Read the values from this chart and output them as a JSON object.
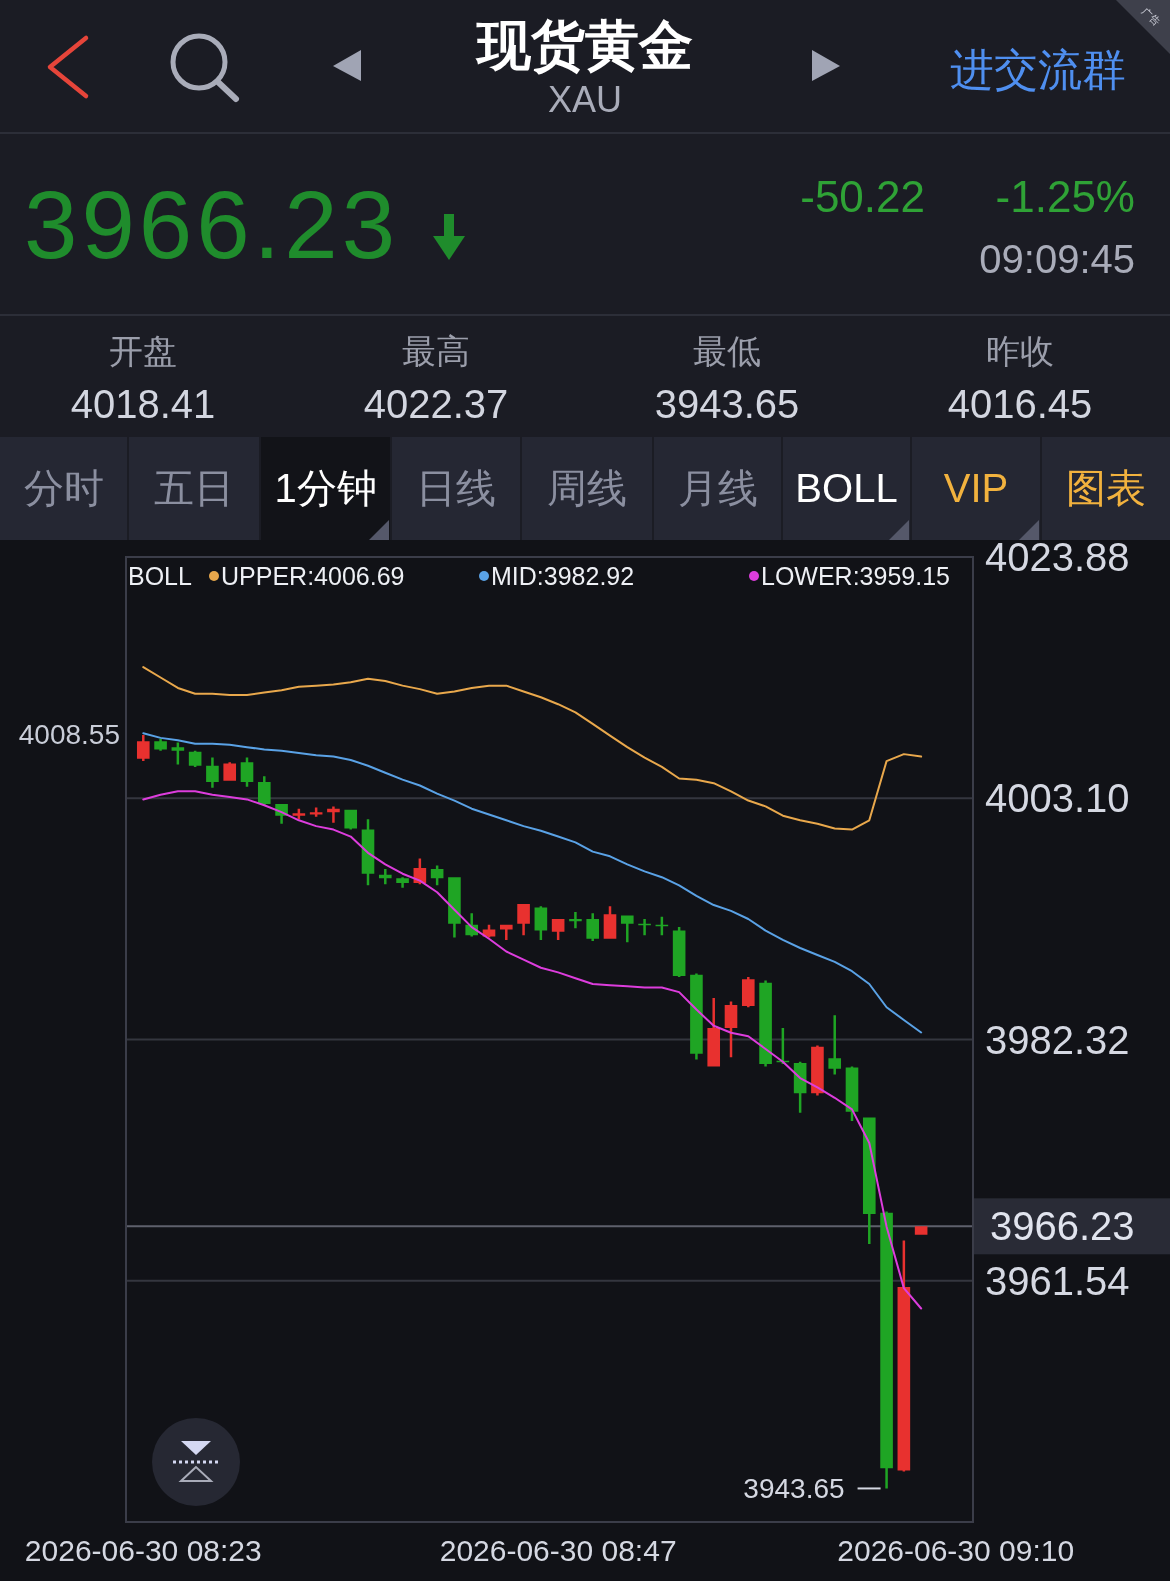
{
  "chart_data": [
    {
      "type": "other",
      "title": "现货黄金",
      "subtitle": "XAU",
      "annotations": [
        "进交流群",
        "广告",
        "3966.23",
        "-50.22",
        "-1.25%",
        "09:09:45",
        "开盘",
        "4018.41",
        "最高",
        "4022.37",
        "最低",
        "3943.65",
        "昨收",
        "4016.45",
        "分时",
        "五日",
        "1分钟",
        "日线",
        "周线",
        "月线",
        "BOLL",
        "VIP",
        "图表"
      ]
    },
    {
      "type": "candlestick",
      "x": [
        "2026-06-30T08:23",
        "2026-06-30T08:24",
        "2026-06-30T08:25",
        "2026-06-30T08:26",
        "2026-06-30T08:27",
        "2026-06-30T08:28",
        "2026-06-30T08:29",
        "2026-06-30T08:30",
        "2026-06-30T08:31",
        "2026-06-30T08:32",
        "2026-06-30T08:33",
        "2026-06-30T08:34",
        "2026-06-30T08:35",
        "2026-06-30T08:36",
        "2026-06-30T08:37",
        "2026-06-30T08:38",
        "2026-06-30T08:39",
        "2026-06-30T08:40",
        "2026-06-30T08:41",
        "2026-06-30T08:42",
        "2026-06-30T08:43",
        "2026-06-30T08:44",
        "2026-06-30T08:45",
        "2026-06-30T08:46",
        "2026-06-30T08:47",
        "2026-06-30T08:48",
        "2026-06-30T08:49",
        "2026-06-30T08:50",
        "2026-06-30T08:51",
        "2026-06-30T08:52",
        "2026-06-30T08:53",
        "2026-06-30T08:54",
        "2026-06-30T08:55",
        "2026-06-30T08:56",
        "2026-06-30T08:57",
        "2026-06-30T08:58",
        "2026-06-30T08:59",
        "2026-06-30T09:00",
        "2026-06-30T09:01",
        "2026-06-30T09:02",
        "2026-06-30T09:03",
        "2026-06-30T09:04",
        "2026-06-30T09:05",
        "2026-06-30T09:06",
        "2026-06-30T09:07",
        "2026-06-30T09:08"
      ],
      "ohlc": [
        [
          4006.5,
          4008.55,
          4006.3,
          4008.0
        ],
        [
          4008.0,
          4008.2,
          4007.2,
          4007.3
        ],
        [
          4007.5,
          4007.9,
          4006.0,
          4007.2
        ],
        [
          4007.1,
          4007.2,
          4005.8,
          4005.9
        ],
        [
          4005.9,
          4006.6,
          4004.0,
          4004.5
        ],
        [
          4004.6,
          4006.2,
          4004.6,
          4006.1
        ],
        [
          4006.2,
          4006.6,
          4004.1,
          4004.5
        ],
        [
          4004.5,
          4005.0,
          4002.5,
          4002.6
        ],
        [
          4002.6,
          4002.6,
          4000.9,
          4001.6
        ],
        [
          4001.6,
          4002.2,
          4001.3,
          4001.8
        ],
        [
          4001.7,
          4002.3,
          4001.5,
          4001.9
        ],
        [
          4001.9,
          4002.4,
          4001.0,
          4002.2
        ],
        [
          4002.1,
          4002.1,
          4000.4,
          4000.5
        ],
        [
          4000.4,
          4001.3,
          3995.6,
          3996.6
        ],
        [
          3996.5,
          3997.0,
          3995.7,
          3996.2
        ],
        [
          3996.2,
          3996.3,
          3995.4,
          3995.8
        ],
        [
          3995.8,
          3997.9,
          3995.7,
          3997.1
        ],
        [
          3997.0,
          3997.3,
          3995.6,
          3996.2
        ],
        [
          3996.3,
          3996.3,
          3991.1,
          3992.3
        ],
        [
          3992.2,
          3993.2,
          3991.2,
          3991.3
        ],
        [
          3991.2,
          3992.2,
          3991.1,
          3991.8
        ],
        [
          3991.8,
          3992.2,
          3990.9,
          3992.2
        ],
        [
          3992.3,
          3994.0,
          3991.3,
          3994.0
        ],
        [
          3993.7,
          3993.8,
          3990.9,
          3991.7
        ],
        [
          3991.6,
          3992.7,
          3990.9,
          3992.7
        ],
        [
          3992.7,
          3993.3,
          3991.9,
          3992.5
        ],
        [
          3992.7,
          3993.2,
          3990.8,
          3991.0
        ],
        [
          3991.0,
          3993.8,
          3991.0,
          3993.1
        ],
        [
          3993.0,
          3993.0,
          3990.7,
          3992.3
        ],
        [
          3992.3,
          3992.7,
          3991.3,
          3992.2
        ],
        [
          3992.2,
          3992.9,
          3991.3,
          3992.1
        ],
        [
          3991.7,
          3992.0,
          3987.7,
          3987.8
        ],
        [
          3987.9,
          3988.0,
          3980.6,
          3981.1
        ],
        [
          3980.0,
          3985.9,
          3980.0,
          3983.3
        ],
        [
          3983.3,
          3985.6,
          3980.8,
          3985.3
        ],
        [
          3985.2,
          3987.7,
          3985.1,
          3987.5
        ],
        [
          3987.2,
          3987.4,
          3980.0,
          3980.2
        ],
        [
          3980.5,
          3983.3,
          3980.2,
          3980.4
        ],
        [
          3980.3,
          3980.4,
          3976.0,
          3977.7
        ],
        [
          3977.7,
          3981.8,
          3977.5,
          3981.7
        ],
        [
          3980.7,
          3984.4,
          3979.3,
          3979.8
        ],
        [
          3979.9,
          3980.0,
          3975.3,
          3976.1
        ],
        [
          3975.6,
          3975.6,
          3964.7,
          3967.3
        ],
        [
          3967.4,
          3967.5,
          3943.65,
          3945.4
        ],
        [
          3945.2,
          3965.0,
          3945.1,
          3961.0
        ],
        [
          3965.5,
          3966.23,
          3965.5,
          3966.23
        ]
      ],
      "colors": [
        "#e8312f",
        "#1fa524",
        "#1fa524",
        "#1fa524",
        "#1fa524",
        "#e8312f",
        "#1fa524",
        "#1fa524",
        "#1fa524",
        "#e8312f",
        "#e8312f",
        "#e8312f",
        "#1fa524",
        "#1fa524",
        "#1fa524",
        "#1fa524",
        "#e8312f",
        "#1fa524",
        "#1fa524",
        "#1fa524",
        "#e8312f",
        "#e8312f",
        "#e8312f",
        "#1fa524",
        "#e8312f",
        "#1fa524",
        "#1fa524",
        "#e8312f",
        "#1fa524",
        "#1fa524",
        "#1fa524",
        "#1fa524",
        "#1fa524",
        "#e8312f",
        "#e8312f",
        "#e8312f",
        "#1fa524",
        "#1fa524",
        "#1fa524",
        "#e8312f",
        "#1fa524",
        "#1fa524",
        "#1fa524",
        "#1fa524",
        "#e8312f",
        "#e8312f"
      ],
      "series": [
        {
          "type": "line",
          "name": "UPPER:4006.69",
          "color": "#e9a84c",
          "values": [
            4014.4,
            4013.5,
            4012.6,
            4012.1,
            4012.1,
            4012.0,
            4012.0,
            4012.2,
            4012.4,
            4012.7,
            4012.8,
            4012.9,
            4013.1,
            4013.4,
            4013.2,
            4012.8,
            4012.5,
            4012.1,
            4012.3,
            4012.6,
            4012.8,
            4012.8,
            4012.3,
            4011.8,
            4011.2,
            4010.5,
            4009.5,
            4008.5,
            4007.5,
            4006.6,
            4005.8,
            4004.8,
            4004.7,
            4004.4,
            4003.7,
            4002.9,
            4002.4,
            4001.6,
            4001.2,
            4000.9,
            4000.5,
            4000.4,
            4001.2,
            4006.3,
            4006.9,
            4006.69
          ]
        },
        {
          "type": "line",
          "name": "MID:3982.92",
          "color": "#5aa2e6",
          "values": [
            4008.7,
            4008.3,
            4008.1,
            4007.8,
            4007.8,
            4007.7,
            4007.5,
            4007.3,
            4007.2,
            4007.0,
            4006.8,
            4006.7,
            4006.4,
            4005.9,
            4005.3,
            4004.7,
            4004.2,
            4003.5,
            4002.9,
            4002.2,
            4001.7,
            4001.2,
            4000.7,
            4000.3,
            3999.8,
            3999.3,
            3998.5,
            3998.1,
            3997.4,
            3996.8,
            3996.3,
            3995.6,
            3994.7,
            3993.9,
            3993.4,
            3992.7,
            3991.7,
            3990.9,
            3990.2,
            3989.6,
            3989.0,
            3988.2,
            3987.1,
            3985.1,
            3984.0,
            3982.92
          ]
        },
        {
          "type": "line",
          "name": "LOWER:3959.15",
          "color": "#dd3ddd",
          "values": [
            4003.0,
            4003.4,
            4003.7,
            4003.7,
            4003.4,
            4003.2,
            4003.0,
            4002.5,
            4001.9,
            4001.2,
            4000.7,
            4000.4,
            3999.8,
            3998.4,
            3997.4,
            3996.6,
            3996.0,
            3995.0,
            3993.5,
            3992.0,
            3991.0,
            3989.9,
            3989.2,
            3988.5,
            3988.1,
            3987.6,
            3987.1,
            3987.0,
            3986.9,
            3986.8,
            3986.8,
            3986.4,
            3984.9,
            3983.5,
            3982.9,
            3982.6,
            3981.5,
            3980.4,
            3979.0,
            3978.2,
            3977.3,
            3976.3,
            3973.4,
            3966.2,
            3960.9,
            3959.15
          ]
        }
      ],
      "legend": "top",
      "legend_title": "BOLL",
      "xlim": [
        "2026-06-30T08:22",
        "2026-06-30T09:11"
      ],
      "xticks": [
        {
          "value": "2026-06-30T08:23",
          "label": "2026-06-30 08:23"
        },
        {
          "value": "2026-06-30T08:47",
          "label": "2026-06-30 08:47"
        },
        {
          "value": "2026-06-30T09:10",
          "label": "2026-06-30 09:10"
        }
      ],
      "ylim": [
        3940.76,
        4023.88
      ],
      "yticks": [
        4023.88,
        {
          "value": 4003.1,
          "label": "4003.10"
        },
        3982.32,
        3961.54
      ],
      "grid": "y",
      "ref_lines": [
        {
          "axis": "y",
          "value": 3966.23,
          "label": "3966.23",
          "color": "#5e606c"
        }
      ],
      "annotations": [
        {
          "text": "4008.55",
          "x": "2026-06-30T08:23",
          "y": 4008.55
        },
        {
          "text": "3943.65",
          "x": "2026-06-30T09:06",
          "y": 3943.65
        }
      ]
    }
  ]
}
